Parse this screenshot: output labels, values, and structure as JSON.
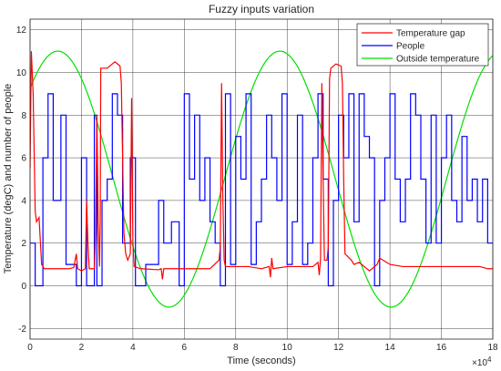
{
  "chart_data": {
    "type": "line",
    "title": "Fuzzy inputs variation",
    "xlabel": "Time (seconds)",
    "ylabel": "Temperature (degC) and number of people",
    "x_exponent_label": "×10",
    "x_exponent_power": "4",
    "xlim": [
      0,
      18
    ],
    "ylim": [
      -2.5,
      12.5
    ],
    "xticks": [
      "0",
      "2",
      "4",
      "6",
      "8",
      "10",
      "12",
      "14",
      "16",
      "18"
    ],
    "yticks": [
      "-2",
      "0",
      "2",
      "4",
      "6",
      "8",
      "10",
      "12"
    ],
    "grid": true,
    "legend_position": "top-right",
    "series": [
      {
        "name": "Temperature gap",
        "color": "#ff0000",
        "points": [
          [
            0,
            5.5
          ],
          [
            0.05,
            11
          ],
          [
            0.12,
            9
          ],
          [
            0.2,
            3.5
          ],
          [
            0.25,
            3
          ],
          [
            0.35,
            3.2
          ],
          [
            0.45,
            1
          ],
          [
            0.55,
            0.8
          ],
          [
            1,
            0.8
          ],
          [
            1.5,
            0.8
          ],
          [
            1.7,
            0.85
          ],
          [
            1.8,
            1.5
          ],
          [
            1.85,
            0.8
          ],
          [
            2.0,
            0.7
          ],
          [
            2.15,
            0.8
          ],
          [
            2.2,
            4
          ],
          [
            2.25,
            2
          ],
          [
            2.3,
            0.8
          ],
          [
            2.5,
            0.8
          ],
          [
            2.55,
            2.5
          ],
          [
            2.6,
            8
          ],
          [
            2.65,
            3
          ],
          [
            2.7,
            0.9
          ],
          [
            2.73,
            3
          ],
          [
            2.75,
            10.2
          ],
          [
            3,
            10.2
          ],
          [
            3.3,
            10.5
          ],
          [
            3.5,
            10.3
          ],
          [
            3.55,
            9.5
          ],
          [
            3.6,
            6
          ],
          [
            3.65,
            2.5
          ],
          [
            3.72,
            1.5
          ],
          [
            3.8,
            1.2
          ],
          [
            3.9,
            1.5
          ],
          [
            3.95,
            8.8
          ],
          [
            4.0,
            2
          ],
          [
            4.05,
            0.9
          ],
          [
            4.3,
            0.8
          ],
          [
            5.0,
            0.75
          ],
          [
            5.1,
            0.8
          ],
          [
            5.15,
            0.3
          ],
          [
            5.2,
            0.8
          ],
          [
            6.0,
            0.8
          ],
          [
            7.0,
            0.8
          ],
          [
            7.35,
            1.2
          ],
          [
            7.4,
            1.8
          ],
          [
            7.45,
            9.5
          ],
          [
            7.5,
            4
          ],
          [
            7.55,
            1.2
          ],
          [
            7.6,
            0.9
          ],
          [
            7.9,
            0.9
          ],
          [
            8.0,
            0.9
          ],
          [
            8.5,
            0.9
          ],
          [
            9.0,
            0.8
          ],
          [
            9.3,
            0.9
          ],
          [
            9.35,
            0.4
          ],
          [
            9.4,
            1.3
          ],
          [
            9.45,
            0.8
          ],
          [
            10,
            0.9
          ],
          [
            11,
            0.9
          ],
          [
            11.2,
            1.1
          ],
          [
            11.25,
            0.5
          ],
          [
            11.3,
            1.3
          ],
          [
            11.35,
            9.5
          ],
          [
            11.4,
            5
          ],
          [
            11.45,
            1.2
          ],
          [
            11.55,
            1.2
          ],
          [
            11.6,
            1.8
          ],
          [
            11.65,
            9.7
          ],
          [
            11.7,
            10.2
          ],
          [
            11.9,
            10.4
          ],
          [
            12.1,
            10.3
          ],
          [
            12.15,
            9.5
          ],
          [
            12.2,
            5
          ],
          [
            12.25,
            1.5
          ],
          [
            12.5,
            1.2
          ],
          [
            12.6,
            1.0
          ],
          [
            12.8,
            1.1
          ],
          [
            13.2,
            0.7
          ],
          [
            13.3,
            0.8
          ],
          [
            13.5,
            1.0
          ],
          [
            13.6,
            1.3
          ],
          [
            14,
            1.0
          ],
          [
            14.5,
            0.9
          ],
          [
            15,
            0.9
          ],
          [
            16,
            0.9
          ],
          [
            17,
            0.9
          ],
          [
            17.5,
            0.9
          ],
          [
            17.8,
            0.8
          ],
          [
            18,
            0.8
          ]
        ]
      },
      {
        "name": "People",
        "color": "#0000ff",
        "points": [
          [
            0,
            2
          ],
          [
            0.2,
            2
          ],
          [
            0.2,
            0
          ],
          [
            0.5,
            0
          ],
          [
            0.5,
            6
          ],
          [
            0.7,
            6
          ],
          [
            0.7,
            9
          ],
          [
            0.9,
            9
          ],
          [
            0.9,
            4
          ],
          [
            1.2,
            4
          ],
          [
            1.2,
            8
          ],
          [
            1.4,
            8
          ],
          [
            1.4,
            1
          ],
          [
            1.8,
            1
          ],
          [
            1.8,
            0
          ],
          [
            2.0,
            0
          ],
          [
            2.0,
            6
          ],
          [
            2.2,
            6
          ],
          [
            2.2,
            0
          ],
          [
            2.5,
            0
          ],
          [
            2.5,
            8
          ],
          [
            2.6,
            8
          ],
          [
            2.6,
            0
          ],
          [
            2.8,
            0
          ],
          [
            2.8,
            4
          ],
          [
            3.0,
            4
          ],
          [
            3.0,
            5
          ],
          [
            3.2,
            5
          ],
          [
            3.2,
            9
          ],
          [
            3.4,
            9
          ],
          [
            3.4,
            8
          ],
          [
            3.6,
            8
          ],
          [
            3.6,
            2
          ],
          [
            3.9,
            2
          ],
          [
            3.9,
            6
          ],
          [
            4.1,
            6
          ],
          [
            4.1,
            0
          ],
          [
            4.5,
            0
          ],
          [
            4.5,
            1
          ],
          [
            5.0,
            1
          ],
          [
            5.0,
            4
          ],
          [
            5.2,
            4
          ],
          [
            5.2,
            2
          ],
          [
            5.5,
            2
          ],
          [
            5.5,
            3
          ],
          [
            5.8,
            3
          ],
          [
            5.8,
            0
          ],
          [
            6.0,
            0
          ],
          [
            6.0,
            9
          ],
          [
            6.2,
            9
          ],
          [
            6.2,
            5
          ],
          [
            6.4,
            5
          ],
          [
            6.4,
            8
          ],
          [
            6.6,
            8
          ],
          [
            6.6,
            4
          ],
          [
            6.8,
            4
          ],
          [
            6.8,
            6
          ],
          [
            7.0,
            6
          ],
          [
            7.0,
            3
          ],
          [
            7.2,
            3
          ],
          [
            7.2,
            2
          ],
          [
            7.4,
            2
          ],
          [
            7.4,
            0
          ],
          [
            7.6,
            0
          ],
          [
            7.6,
            9
          ],
          [
            7.8,
            9
          ],
          [
            7.8,
            1
          ],
          [
            8.0,
            1
          ],
          [
            8.0,
            7
          ],
          [
            8.2,
            7
          ],
          [
            8.2,
            5
          ],
          [
            8.4,
            5
          ],
          [
            8.4,
            9
          ],
          [
            8.6,
            9
          ],
          [
            8.6,
            1
          ],
          [
            8.8,
            1
          ],
          [
            8.8,
            3
          ],
          [
            9.0,
            3
          ],
          [
            9.0,
            5
          ],
          [
            9.2,
            5
          ],
          [
            9.2,
            8
          ],
          [
            9.4,
            8
          ],
          [
            9.4,
            6
          ],
          [
            9.6,
            6
          ],
          [
            9.6,
            4
          ],
          [
            9.8,
            4
          ],
          [
            9.8,
            9
          ],
          [
            10.0,
            9
          ],
          [
            10.0,
            1
          ],
          [
            10.2,
            1
          ],
          [
            10.2,
            3
          ],
          [
            10.4,
            3
          ],
          [
            10.4,
            8
          ],
          [
            10.6,
            8
          ],
          [
            10.6,
            1
          ],
          [
            10.8,
            1
          ],
          [
            10.8,
            2
          ],
          [
            11.0,
            2
          ],
          [
            11.0,
            6
          ],
          [
            11.2,
            6
          ],
          [
            11.2,
            9
          ],
          [
            11.4,
            9
          ],
          [
            11.4,
            5
          ],
          [
            11.6,
            5
          ],
          [
            11.6,
            0
          ],
          [
            11.8,
            0
          ],
          [
            11.8,
            4
          ],
          [
            12.0,
            4
          ],
          [
            12.0,
            8
          ],
          [
            12.2,
            8
          ],
          [
            12.2,
            6
          ],
          [
            12.4,
            6
          ],
          [
            12.4,
            9
          ],
          [
            12.6,
            9
          ],
          [
            12.6,
            3
          ],
          [
            12.8,
            3
          ],
          [
            12.8,
            9
          ],
          [
            13.0,
            9
          ],
          [
            13.0,
            7
          ],
          [
            13.2,
            7
          ],
          [
            13.2,
            6
          ],
          [
            13.4,
            6
          ],
          [
            13.4,
            0
          ],
          [
            13.6,
            0
          ],
          [
            13.6,
            4
          ],
          [
            13.8,
            4
          ],
          [
            13.8,
            6
          ],
          [
            14.0,
            6
          ],
          [
            14.0,
            9
          ],
          [
            14.2,
            9
          ],
          [
            14.2,
            5
          ],
          [
            14.4,
            5
          ],
          [
            14.4,
            3
          ],
          [
            14.6,
            3
          ],
          [
            14.6,
            5
          ],
          [
            14.8,
            5
          ],
          [
            14.8,
            9
          ],
          [
            15.0,
            9
          ],
          [
            15.0,
            8
          ],
          [
            15.2,
            8
          ],
          [
            15.2,
            5
          ],
          [
            15.4,
            5
          ],
          [
            15.4,
            2
          ],
          [
            15.6,
            2
          ],
          [
            15.6,
            8
          ],
          [
            15.8,
            8
          ],
          [
            15.8,
            2
          ],
          [
            16.0,
            2
          ],
          [
            16.0,
            6
          ],
          [
            16.2,
            6
          ],
          [
            16.2,
            8
          ],
          [
            16.4,
            8
          ],
          [
            16.4,
            4
          ],
          [
            16.6,
            4
          ],
          [
            16.6,
            3
          ],
          [
            16.8,
            3
          ],
          [
            16.8,
            7
          ],
          [
            17.0,
            7
          ],
          [
            17.0,
            4
          ],
          [
            17.2,
            4
          ],
          [
            17.2,
            5
          ],
          [
            17.4,
            5
          ],
          [
            17.4,
            3
          ],
          [
            17.6,
            3
          ],
          [
            17.6,
            5
          ],
          [
            17.8,
            5
          ],
          [
            17.8,
            2
          ],
          [
            18,
            2
          ]
        ]
      },
      {
        "name": "Outside temperature",
        "color": "#00e000",
        "function": "sine",
        "mean": 5,
        "amplitude": 6,
        "period": 8.64,
        "phase_zero_at": -1.08
      }
    ]
  }
}
